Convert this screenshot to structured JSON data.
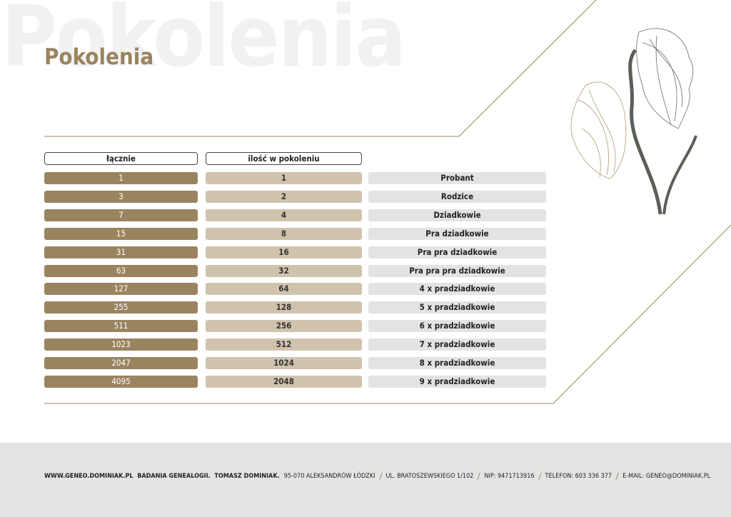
{
  "header": {
    "watermark": "Pokolenia",
    "title": "Pokolenia"
  },
  "table": {
    "columns": [
      "łącznie",
      "ilość w pokoleniu"
    ],
    "rows": [
      [
        1,
        1,
        "Probant"
      ],
      [
        3,
        2,
        "Rodzice"
      ],
      [
        7,
        4,
        "Dziadkowie"
      ],
      [
        15,
        8,
        "Pra dziadkowie"
      ],
      [
        31,
        16,
        "Pra pra dziadkowie"
      ],
      [
        63,
        32,
        "Pra pra pra dziadkowie"
      ],
      [
        127,
        64,
        "4 x pradziadkowie"
      ],
      [
        255,
        128,
        "5 x pradziadkowie"
      ],
      [
        511,
        256,
        "6 x pradziadkowie"
      ],
      [
        1023,
        512,
        "7 x pradziadkowie"
      ],
      [
        2047,
        1024,
        "8 x pradziadkowie"
      ],
      [
        4095,
        2048,
        "9 x pradziadkowie"
      ]
    ]
  },
  "footer": {
    "lead": "WWW.GENEO.DOMINIAK.PL  BADANIA GENEALOGII.  TOMASZ DOMINIAK.",
    "items": [
      "95-070 ALEKSANDRÓW ŁÓDZKI",
      "UL. BRATOSZEWSKIEGO 1/102",
      "NIP: 9471713916",
      "TELEFON: 603 336 377",
      "E-MAIL: GENEO@DOMINIAK.PL"
    ]
  }
}
